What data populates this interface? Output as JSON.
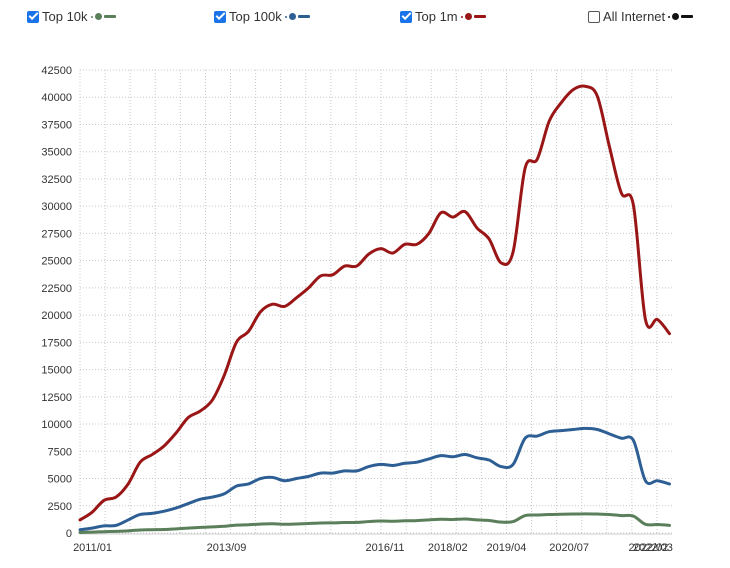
{
  "legend": [
    {
      "label": "Top 10k",
      "checked": true,
      "color": "#5a7f5a"
    },
    {
      "label": "Top 100k",
      "checked": true,
      "color": "#2d5f94"
    },
    {
      "label": "Top 1m",
      "checked": true,
      "color": "#9a1616"
    },
    {
      "label": "All Internet",
      "checked": false,
      "color": "#111111"
    }
  ],
  "chart_data": {
    "type": "line",
    "grid": true,
    "ylim": [
      0,
      42500
    ],
    "yticks": [
      0,
      2500,
      5000,
      7500,
      10000,
      12500,
      15000,
      17500,
      20000,
      22500,
      25000,
      27500,
      30000,
      32500,
      35000,
      37500,
      40000,
      42500
    ],
    "xlim": [
      2010.75,
      2022.55
    ],
    "xticks": [
      {
        "label": "2011/01",
        "t": 2011.0
      },
      {
        "label": "2013/09",
        "t": 2013.67
      },
      {
        "label": "2016/11",
        "t": 2016.83
      },
      {
        "label": "2018/02",
        "t": 2018.08
      },
      {
        "label": "2019/04",
        "t": 2019.25
      },
      {
        "label": "2020/07",
        "t": 2020.5
      },
      {
        "label": "2022/02",
        "t": 2022.08
      },
      {
        "label": "2022/03",
        "t": 2022.17
      }
    ],
    "series": [
      {
        "name": "Top 1m",
        "color": "#9a1616",
        "points": [
          [
            2010.75,
            1200
          ],
          [
            2010.92,
            1900
          ],
          [
            2011.08,
            3000
          ],
          [
            2011.25,
            3300
          ],
          [
            2011.42,
            4500
          ],
          [
            2011.58,
            6500
          ],
          [
            2011.75,
            7200
          ],
          [
            2011.92,
            8000
          ],
          [
            2012.08,
            9200
          ],
          [
            2012.25,
            10600
          ],
          [
            2012.42,
            11200
          ],
          [
            2012.58,
            12200
          ],
          [
            2012.75,
            14500
          ],
          [
            2012.92,
            17500
          ],
          [
            2013.08,
            18500
          ],
          [
            2013.25,
            20300
          ],
          [
            2013.42,
            21000
          ],
          [
            2013.58,
            20800
          ],
          [
            2013.75,
            21600
          ],
          [
            2013.92,
            22500
          ],
          [
            2014.08,
            23600
          ],
          [
            2014.25,
            23700
          ],
          [
            2014.42,
            24500
          ],
          [
            2014.58,
            24500
          ],
          [
            2014.75,
            25600
          ],
          [
            2014.92,
            26100
          ],
          [
            2015.08,
            25700
          ],
          [
            2015.25,
            26500
          ],
          [
            2015.42,
            26500
          ],
          [
            2015.58,
            27500
          ],
          [
            2015.75,
            29400
          ],
          [
            2015.92,
            29000
          ],
          [
            2016.08,
            29500
          ],
          [
            2016.25,
            28000
          ],
          [
            2016.42,
            27000
          ],
          [
            2016.58,
            24800
          ],
          [
            2016.75,
            25800
          ],
          [
            2016.92,
            33500
          ],
          [
            2017.08,
            34300
          ],
          [
            2017.25,
            37800
          ],
          [
            2017.42,
            39500
          ],
          [
            2017.58,
            40700
          ],
          [
            2017.75,
            41000
          ],
          [
            2017.92,
            40100
          ],
          [
            2018.08,
            35500
          ],
          [
            2018.25,
            31200
          ],
          [
            2018.42,
            30100
          ],
          [
            2018.58,
            19600
          ],
          [
            2018.75,
            19600
          ],
          [
            2018.92,
            18300
          ]
        ]
      },
      {
        "name": "Top 100k",
        "color": "#2d5f94",
        "points": [
          [
            2010.75,
            300
          ],
          [
            2010.92,
            450
          ],
          [
            2011.08,
            650
          ],
          [
            2011.25,
            700
          ],
          [
            2011.42,
            1200
          ],
          [
            2011.58,
            1700
          ],
          [
            2011.75,
            1800
          ],
          [
            2011.92,
            2000
          ],
          [
            2012.08,
            2300
          ],
          [
            2012.25,
            2700
          ],
          [
            2012.42,
            3100
          ],
          [
            2012.58,
            3300
          ],
          [
            2012.75,
            3600
          ],
          [
            2012.92,
            4300
          ],
          [
            2013.08,
            4500
          ],
          [
            2013.25,
            5000
          ],
          [
            2013.42,
            5100
          ],
          [
            2013.58,
            4800
          ],
          [
            2013.75,
            5000
          ],
          [
            2013.92,
            5200
          ],
          [
            2014.08,
            5500
          ],
          [
            2014.25,
            5500
          ],
          [
            2014.42,
            5700
          ],
          [
            2014.58,
            5700
          ],
          [
            2014.75,
            6100
          ],
          [
            2014.92,
            6300
          ],
          [
            2015.08,
            6200
          ],
          [
            2015.25,
            6400
          ],
          [
            2015.42,
            6500
          ],
          [
            2015.58,
            6800
          ],
          [
            2015.75,
            7100
          ],
          [
            2015.92,
            7000
          ],
          [
            2016.08,
            7200
          ],
          [
            2016.25,
            6900
          ],
          [
            2016.42,
            6700
          ],
          [
            2016.58,
            6100
          ],
          [
            2016.75,
            6300
          ],
          [
            2016.92,
            8700
          ],
          [
            2017.08,
            8900
          ],
          [
            2017.25,
            9300
          ],
          [
            2017.42,
            9400
          ],
          [
            2017.58,
            9500
          ],
          [
            2017.75,
            9600
          ],
          [
            2017.92,
            9500
          ],
          [
            2018.08,
            9100
          ],
          [
            2018.25,
            8700
          ],
          [
            2018.42,
            8500
          ],
          [
            2018.58,
            4800
          ],
          [
            2018.75,
            4800
          ],
          [
            2018.92,
            4500
          ]
        ]
      },
      {
        "name": "Top 10k",
        "color": "#5a7f5a",
        "points": [
          [
            2010.75,
            50
          ],
          [
            2010.92,
            80
          ],
          [
            2011.08,
            120
          ],
          [
            2011.25,
            150
          ],
          [
            2011.42,
            200
          ],
          [
            2011.58,
            280
          ],
          [
            2011.75,
            300
          ],
          [
            2011.92,
            320
          ],
          [
            2012.08,
            380
          ],
          [
            2012.25,
            450
          ],
          [
            2012.42,
            520
          ],
          [
            2012.58,
            560
          ],
          [
            2012.75,
            620
          ],
          [
            2012.92,
            720
          ],
          [
            2013.08,
            760
          ],
          [
            2013.25,
            820
          ],
          [
            2013.42,
            850
          ],
          [
            2013.58,
            800
          ],
          [
            2013.75,
            830
          ],
          [
            2013.92,
            870
          ],
          [
            2014.08,
            920
          ],
          [
            2014.25,
            930
          ],
          [
            2014.42,
            960
          ],
          [
            2014.58,
            970
          ],
          [
            2014.75,
            1050
          ],
          [
            2014.92,
            1100
          ],
          [
            2015.08,
            1080
          ],
          [
            2015.25,
            1120
          ],
          [
            2015.42,
            1140
          ],
          [
            2015.58,
            1200
          ],
          [
            2015.75,
            1260
          ],
          [
            2015.92,
            1240
          ],
          [
            2016.08,
            1280
          ],
          [
            2016.25,
            1200
          ],
          [
            2016.42,
            1150
          ],
          [
            2016.58,
            1000
          ],
          [
            2016.75,
            1050
          ],
          [
            2016.92,
            1600
          ],
          [
            2017.08,
            1650
          ],
          [
            2017.25,
            1700
          ],
          [
            2017.42,
            1720
          ],
          [
            2017.58,
            1740
          ],
          [
            2017.75,
            1760
          ],
          [
            2017.92,
            1740
          ],
          [
            2018.08,
            1700
          ],
          [
            2018.25,
            1600
          ],
          [
            2018.42,
            1550
          ],
          [
            2018.58,
            800
          ],
          [
            2018.75,
            780
          ],
          [
            2018.92,
            700
          ]
        ]
      }
    ]
  }
}
